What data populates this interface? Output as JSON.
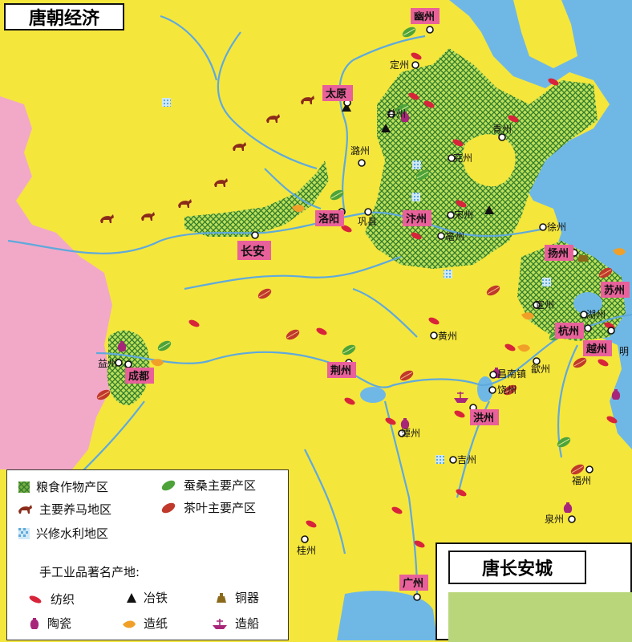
{
  "title": "唐朝经济",
  "inset_title": "唐长安城",
  "cities": {
    "youzhou": "幽州",
    "dingzhou": "定州",
    "taiyuan": "太原",
    "bingzhou": "并州",
    "luzhou": "潞州",
    "qingzhou": "青州",
    "yanzhou": "兖州",
    "luoyang": "洛阳",
    "gongxian": "巩县",
    "bianzhou": "汴州",
    "songzhou": "宋州",
    "bozhou": "亳州",
    "changan": "长安",
    "xuzhou": "徐州",
    "yangzhou": "扬州",
    "suzhou": "苏州",
    "xuanzhou": "宣州",
    "huzhou": "湖州",
    "hangzhou": "杭州",
    "yuezhou": "越州",
    "ming": "明",
    "huangzhou": "黄州",
    "shezhou": "歙州",
    "jingzhou": "荆州",
    "jingdezhen": "昌南镇",
    "raozhou": "饶州",
    "hongzhou": "洪州",
    "tanzhou": "潭州",
    "jizhou": "吉州",
    "fuzhou": "福州",
    "quanzhou": "泉州",
    "guizhou": "桂州",
    "guangzhou": "广州",
    "yizhou": "益州",
    "chengdu": "成都"
  },
  "legend": {
    "grain": "粮食作物产区",
    "silk": "蚕桑主要产区",
    "horse": "主要养马地区",
    "tea": "茶叶主要产区",
    "water": "兴修水利地区",
    "crafts_heading": "手工业品著名产地:",
    "textile": "纺织",
    "iron": "冶铁",
    "bronze": "铜器",
    "porcelain": "陶瓷",
    "paper": "造纸",
    "ship": "造船"
  },
  "colors": {
    "land": "#f5e63c",
    "sea": "#6fb8e6",
    "foreign": "#f2a9c8",
    "grain": "#3a8c32",
    "river": "#5fa9dc",
    "highlight": "#e8619a",
    "horse": "#8a2b1a",
    "textile": "#d8243a"
  }
}
